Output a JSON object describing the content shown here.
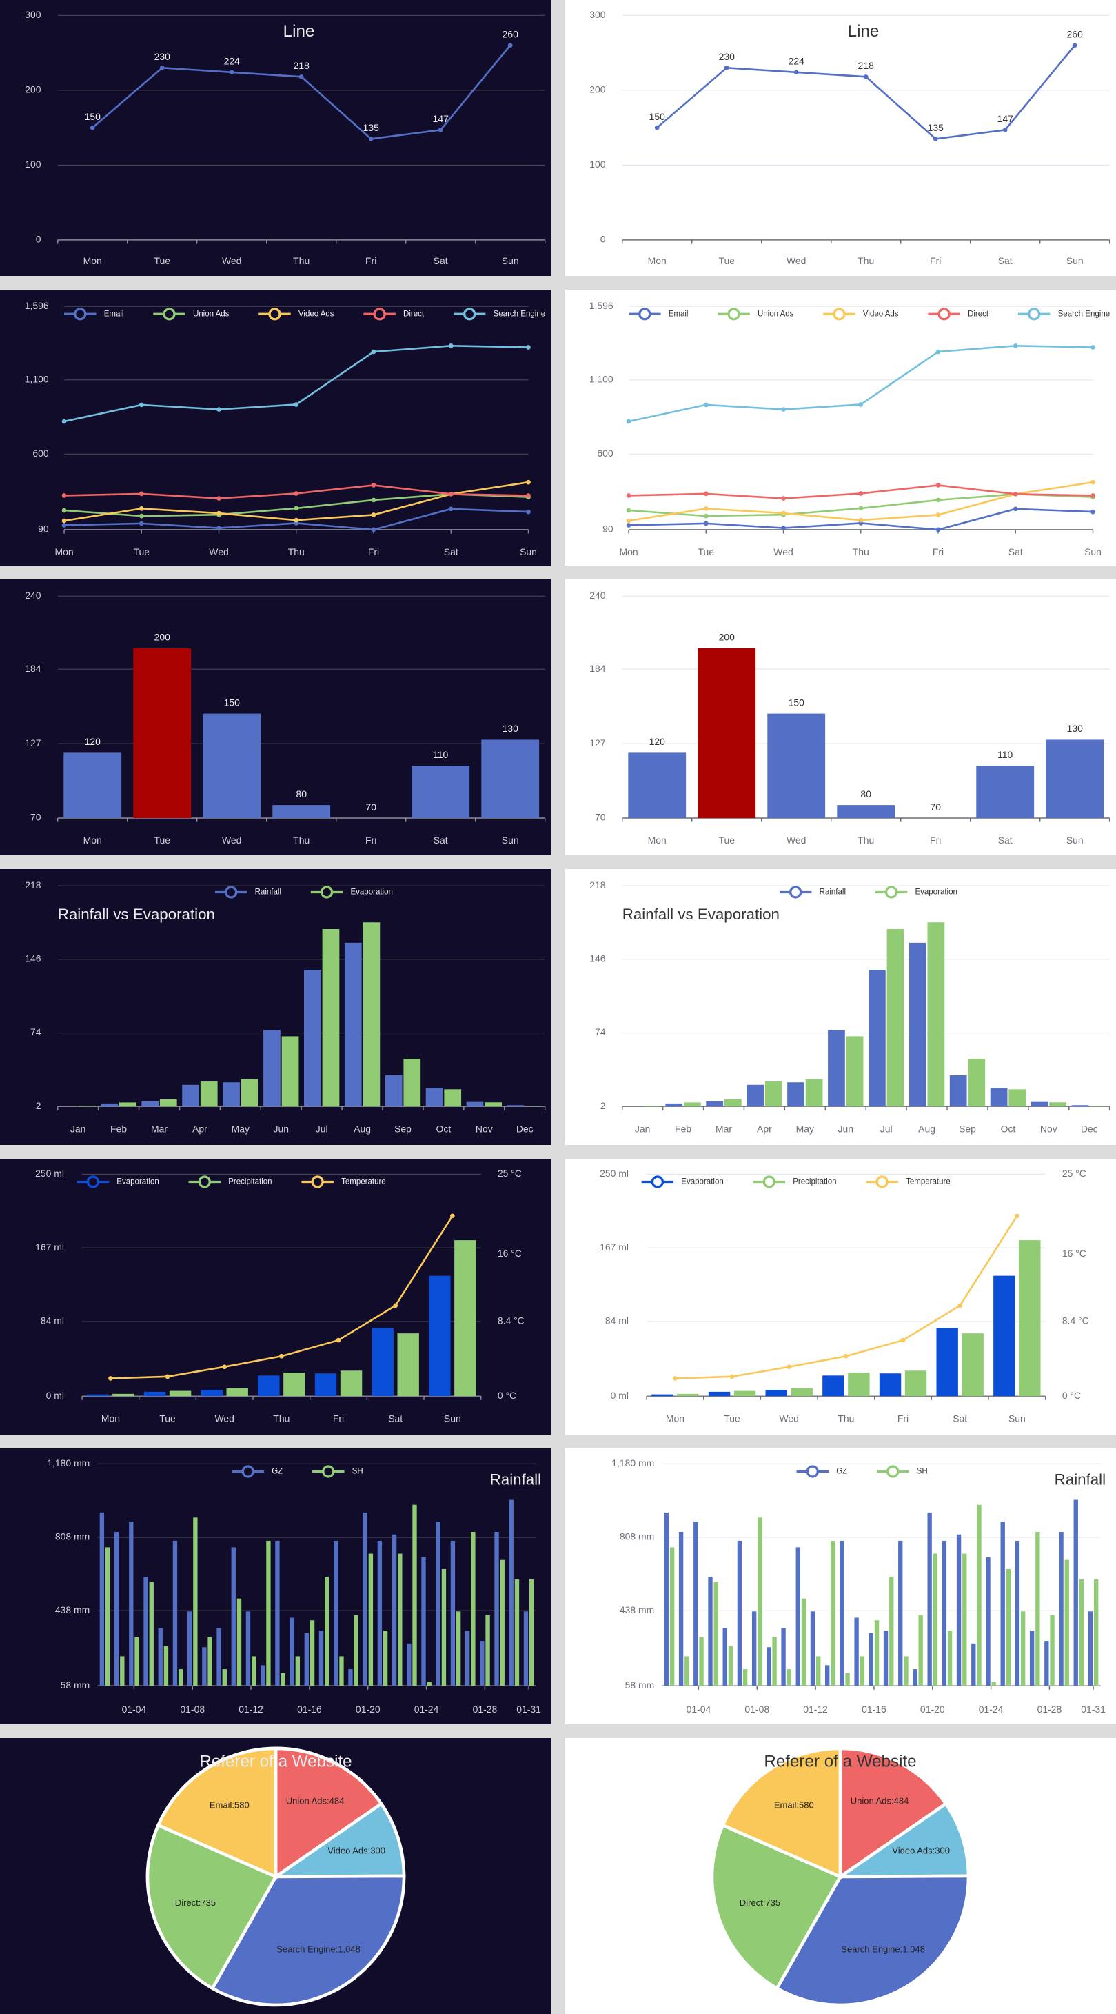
{
  "chart_data": [
    {
      "type": "line",
      "title": "Line",
      "categories": [
        "Mon",
        "Tue",
        "Wed",
        "Thu",
        "Fri",
        "Sat",
        "Sun"
      ],
      "values": [
        150,
        230,
        224,
        218,
        135,
        147,
        260
      ],
      "color": "#5470c6",
      "ylim": [
        0,
        300
      ],
      "yticks": [
        0,
        100,
        200,
        300
      ],
      "labels": true,
      "grid": true
    },
    {
      "type": "line",
      "categories": [
        "Mon",
        "Tue",
        "Wed",
        "Thu",
        "Fri",
        "Sat",
        "Sun"
      ],
      "series": [
        {
          "name": "Email",
          "color": "#5470c6",
          "values": [
            120,
            132,
            101,
            134,
            90,
            230,
            210
          ]
        },
        {
          "name": "Union Ads",
          "color": "#91cc75",
          "values": [
            220,
            182,
            191,
            234,
            290,
            330,
            310
          ]
        },
        {
          "name": "Video Ads",
          "color": "#fac858",
          "values": [
            150,
            232,
            201,
            154,
            190,
            330,
            410
          ]
        },
        {
          "name": "Direct",
          "color": "#ee6666",
          "values": [
            320,
            332,
            301,
            334,
            390,
            330,
            320
          ]
        },
        {
          "name": "Search Engine",
          "color": "#73c0de",
          "values": [
            820,
            932,
            901,
            934,
            1290,
            1330,
            1320
          ]
        }
      ],
      "ylim": [
        90,
        1596
      ],
      "yticks": [
        90,
        600,
        {
          "value": 1100,
          "label": "1,100"
        },
        {
          "value": 1596,
          "label": "1,596"
        }
      ],
      "grid": true
    },
    {
      "type": "bar",
      "categories": [
        "Mon",
        "Tue",
        "Wed",
        "Thu",
        "Fri",
        "Sat",
        "Sun"
      ],
      "values": [
        120,
        200,
        150,
        80,
        70,
        110,
        130
      ],
      "colors": [
        "#5470c6",
        "#a90000",
        "#5470c6",
        "#5470c6",
        "#5470c6",
        "#5470c6",
        "#5470c6"
      ],
      "ylim": [
        70,
        240
      ],
      "yticks": [
        70,
        127,
        184,
        240
      ],
      "labels": true,
      "grid": true
    },
    {
      "type": "bar",
      "title": "Rainfall vs Evaporation",
      "categories": [
        "Jan",
        "Feb",
        "Mar",
        "Apr",
        "May",
        "Jun",
        "Jul",
        "Aug",
        "Sep",
        "Oct",
        "Nov",
        "Dec"
      ],
      "series": [
        {
          "name": "Rainfall",
          "color": "#5470c6",
          "values": [
            2.0,
            4.9,
            7.0,
            23.2,
            25.6,
            76.7,
            135.6,
            162.2,
            32.6,
            20.0,
            6.4,
            3.3
          ]
        },
        {
          "name": "Evaporation",
          "color": "#91cc75",
          "values": [
            2.6,
            5.9,
            9.0,
            26.4,
            28.7,
            70.7,
            175.6,
            182.2,
            48.7,
            18.8,
            6.0,
            2.3
          ]
        }
      ],
      "ylim": [
        2,
        218
      ],
      "yticks": [
        2,
        74,
        146,
        218
      ],
      "grid": true
    },
    {
      "type": "bar",
      "categories": [
        "Mon",
        "Tue",
        "Wed",
        "Thu",
        "Fri",
        "Sat",
        "Sun"
      ],
      "series": [
        {
          "name": "Evaporation",
          "color": "#0b4fd8",
          "values": [
            2.0,
            4.9,
            7.0,
            23.2,
            25.6,
            76.7,
            135.6
          ]
        },
        {
          "name": "Precipitation",
          "color": "#91cc75",
          "values": [
            2.6,
            5.9,
            9.0,
            26.4,
            28.7,
            70.7,
            175.6
          ]
        },
        {
          "name": "Temperature",
          "type": "line",
          "axis": "y2",
          "color": "#fac858",
          "values": [
            2.0,
            2.2,
            3.3,
            4.5,
            6.3,
            10.2,
            20.3
          ]
        }
      ],
      "ylim": [
        0,
        250
      ],
      "yticks": [
        {
          "value": 0,
          "label": "0 ml"
        },
        {
          "value": 84,
          "label": "84 ml"
        },
        {
          "value": 167,
          "label": "167 ml"
        },
        {
          "value": 250,
          "label": "250 ml"
        }
      ],
      "y2lim": [
        0,
        25
      ],
      "y2ticks": [
        {
          "value": 0,
          "label": "0 °C"
        },
        {
          "value": 8.4,
          "label": "8.4 °C"
        },
        {
          "value": 16,
          "label": "16 °C"
        },
        {
          "value": 25,
          "label": "25 °C"
        }
      ],
      "grid": true
    },
    {
      "type": "bar",
      "title": "Rainfall",
      "categories": [
        null,
        null,
        "01-04",
        null,
        null,
        null,
        "01-08",
        null,
        null,
        null,
        "01-12",
        null,
        null,
        null,
        "01-16",
        null,
        null,
        null,
        "01-20",
        null,
        null,
        null,
        "01-24",
        null,
        null,
        null,
        "01-28",
        null,
        null,
        "01-31"
      ],
      "series": [
        {
          "name": "GZ",
          "color": "#5470c6",
          "values": [
            934,
            836,
            888,
            609,
            350,
            791,
            434,
            253,
            350,
            758,
            434,
            162,
            791,
            402,
            324,
            337,
            791,
            142,
            934,
            791,
            823,
            272,
            707,
            888,
            791,
            337,
            285,
            836,
            998,
            434
          ]
        },
        {
          "name": "SH",
          "color": "#91cc75",
          "values": [
            758,
            207,
            304,
            583,
            259,
            142,
            908,
            304,
            142,
            499,
            207,
            791,
            123,
            207,
            389,
            609,
            207,
            415,
            726,
            337,
            726,
            973,
            77,
            648,
            434,
            836,
            415,
            694,
            596,
            596
          ]
        }
      ],
      "ylim": [
        58,
        1180
      ],
      "yticks": [
        {
          "value": 58,
          "label": "58 mm"
        },
        {
          "value": 438,
          "label": "438 mm"
        },
        {
          "value": 808,
          "label": "808 mm"
        },
        {
          "value": 1180,
          "label": "1,180 mm"
        }
      ],
      "grid": true
    },
    {
      "type": "pie",
      "title": "Referer of a Website",
      "values": [
        484,
        300,
        1048,
        735,
        580
      ],
      "value_labels": [
        "Union Ads:484",
        "Video Ads:300",
        "Search Engine:1,048",
        "Direct:735",
        "Email:580"
      ],
      "colors": [
        "#ee6666",
        "#73c0de",
        "#5470c6",
        "#91cc75",
        "#fac858"
      ]
    }
  ]
}
